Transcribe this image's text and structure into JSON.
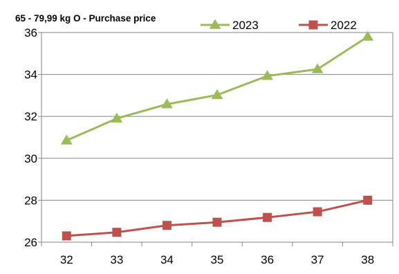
{
  "chart_data": {
    "type": "line",
    "title": "65 - 79,99 kg O - Purchase price",
    "x": [
      32,
      33,
      34,
      35,
      36,
      37,
      38
    ],
    "ylim": [
      26,
      36
    ],
    "yticks": [
      26,
      28,
      30,
      32,
      34,
      36
    ],
    "grid": "horizontal",
    "legend": "top-right",
    "series": [
      {
        "name": "2023",
        "color": "#9BBB59",
        "marker": "triangle",
        "values": [
          30.85,
          31.9,
          32.58,
          33.02,
          33.93,
          34.25,
          35.8
        ]
      },
      {
        "name": "2022",
        "color": "#C0504D",
        "marker": "square",
        "values": [
          26.3,
          26.47,
          26.8,
          26.95,
          27.18,
          27.45,
          28.0
        ]
      }
    ]
  }
}
